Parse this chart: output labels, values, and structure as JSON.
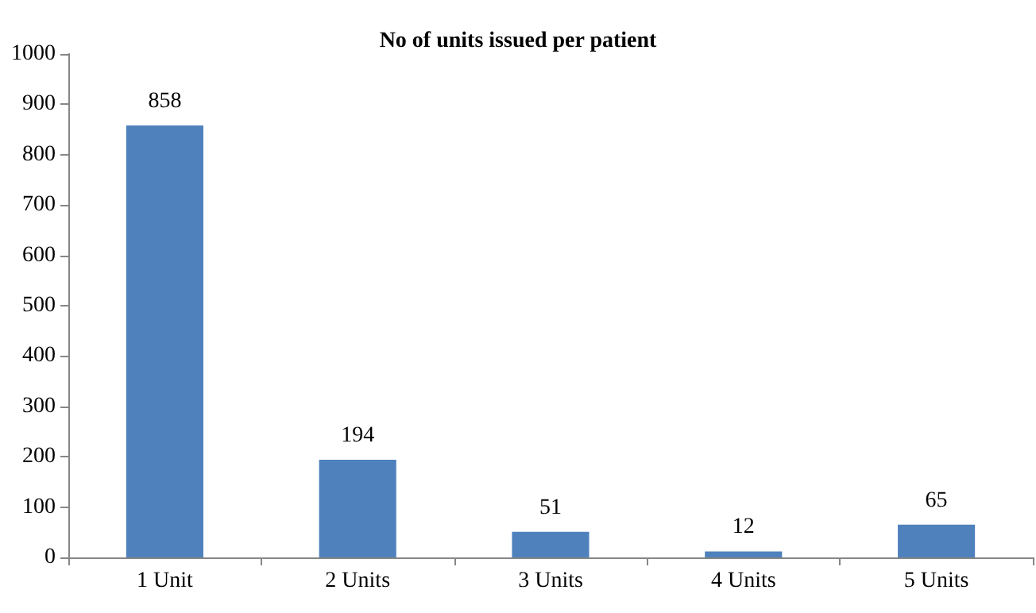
{
  "chart_data": {
    "type": "bar",
    "title": "No of units issued per patient",
    "categories": [
      "1 Unit",
      "2 Units",
      "3 Units",
      "4 Units",
      "5 Units"
    ],
    "values": [
      858,
      194,
      51,
      12,
      65
    ],
    "color": "#4f81bd",
    "ylim": [
      0,
      1000
    ],
    "yticks": [
      0,
      100,
      200,
      300,
      400,
      500,
      600,
      700,
      800,
      900,
      1000
    ],
    "grid": false,
    "data_labels": true
  }
}
